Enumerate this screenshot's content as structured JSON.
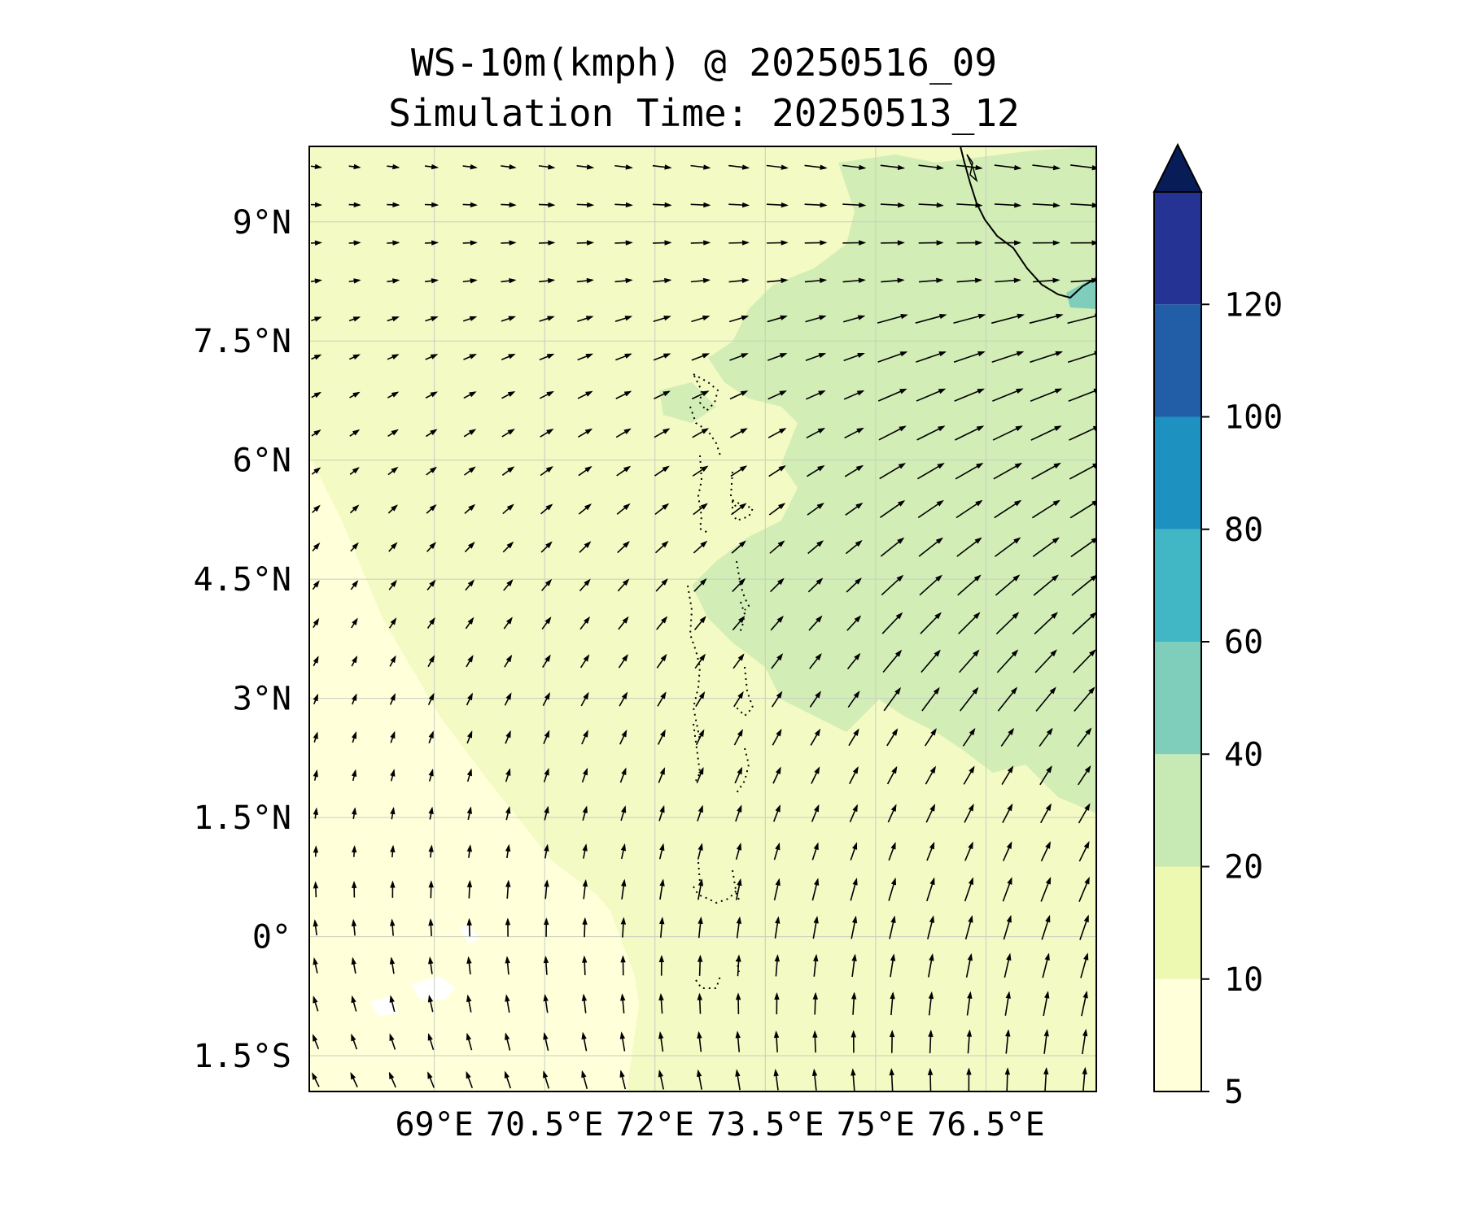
{
  "title": {
    "line1": "WS-10m(kmph) @ 20250516_09",
    "line2": "Simulation Time: 20250513_12"
  },
  "map": {
    "lon_range": [
      67.3,
      78.0
    ],
    "lat_range": [
      -1.95,
      9.95
    ],
    "lat_ticks": [
      {
        "value": 9,
        "label": "9°N"
      },
      {
        "value": 7.5,
        "label": "7.5°N"
      },
      {
        "value": 6,
        "label": "6°N"
      },
      {
        "value": 4.5,
        "label": "4.5°N"
      },
      {
        "value": 3,
        "label": "3°N"
      },
      {
        "value": 1.5,
        "label": "1.5°N"
      },
      {
        "value": 0,
        "label": "0°"
      },
      {
        "value": -1.5,
        "label": "1.5°S"
      }
    ],
    "lon_ticks": [
      {
        "value": 69,
        "label": "69°E"
      },
      {
        "value": 70.5,
        "label": "70.5°E"
      },
      {
        "value": 72,
        "label": "72°E"
      },
      {
        "value": 73.5,
        "label": "73.5°E"
      },
      {
        "value": 75,
        "label": "75°E"
      },
      {
        "value": 76.5,
        "label": "76.5°E"
      }
    ],
    "gridlines": true
  },
  "colorbar": {
    "levels": [
      5,
      10,
      20,
      40,
      60,
      80,
      100,
      120
    ],
    "tick_labels": [
      "5",
      "10",
      "20",
      "40",
      "60",
      "80",
      "100",
      "120"
    ],
    "colors": [
      "#ffffd9",
      "#edf8b1",
      "#c7e9b4",
      "#7fcdbb",
      "#41b6c4",
      "#1d91c0",
      "#225ea8",
      "#253494"
    ],
    "extend_color": "#081d58",
    "extend": "max"
  },
  "field_colors": {
    "lightest": "#ffffd9",
    "light": "#f3fac3",
    "mid": "#edf8b1",
    "green": "#d2edb6",
    "teal": "#7fcdbb"
  }
}
